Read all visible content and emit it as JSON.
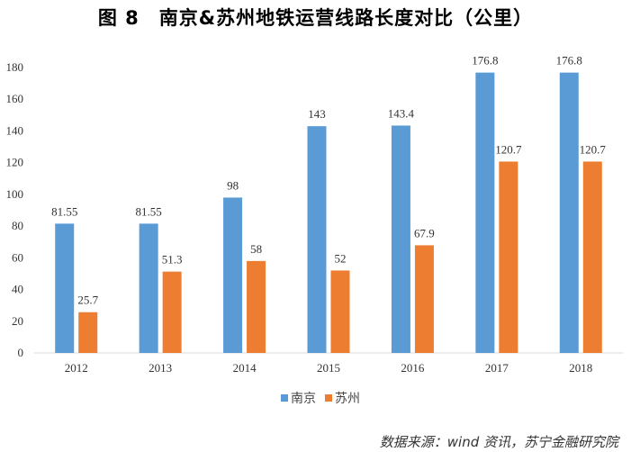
{
  "title": "图 8　南京&苏州地铁运营线路长度对比（公里）",
  "source": "数据来源：wind 资讯，苏宁金融研究院",
  "chart_data": {
    "type": "bar",
    "title": "图 8　南京&苏州地铁运营线路长度对比（公里）",
    "categories": [
      "2012",
      "2013",
      "2014",
      "2015",
      "2016",
      "2017",
      "2018"
    ],
    "series": [
      {
        "name": "南京",
        "color": "#5b9bd5",
        "values": [
          81.55,
          81.55,
          98,
          143,
          143.4,
          176.8,
          176.8
        ],
        "labels": [
          "81.55",
          "81.55",
          "98",
          "143",
          "143.4",
          "176.8",
          "176.8"
        ]
      },
      {
        "name": "苏州",
        "color": "#ed7d31",
        "values": [
          25.7,
          51.3,
          58,
          52,
          67.9,
          120.7,
          120.7
        ],
        "labels": [
          "25.7",
          "51.3",
          "58",
          "52",
          "67.9",
          "120.7",
          "120.7"
        ]
      }
    ],
    "ylim": [
      0,
      180
    ],
    "yticks": [
      0,
      20,
      40,
      60,
      80,
      100,
      120,
      140,
      160,
      180
    ],
    "grid": false,
    "legend": "bottom",
    "xlabel": "",
    "ylabel": ""
  }
}
